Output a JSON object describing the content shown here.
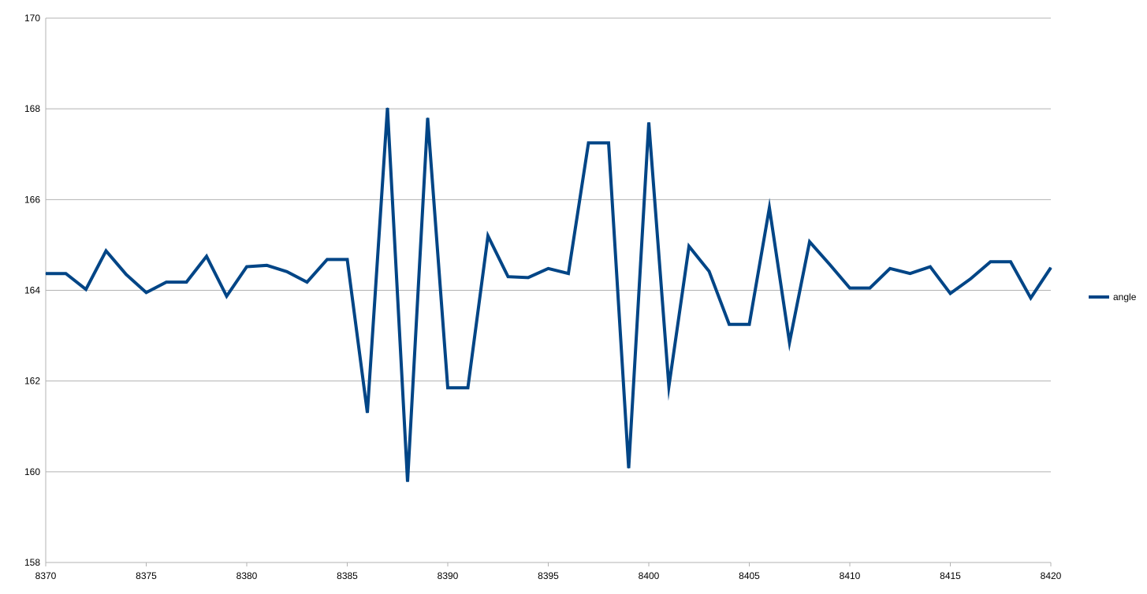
{
  "chart_data": {
    "type": "line",
    "title": "",
    "xlabel": "",
    "ylabel": "",
    "xlim": [
      8370,
      8420
    ],
    "ylim": [
      158,
      170
    ],
    "x_ticks": [
      8370,
      8375,
      8380,
      8385,
      8390,
      8395,
      8400,
      8405,
      8410,
      8415,
      8420
    ],
    "y_ticks": [
      158,
      160,
      162,
      164,
      166,
      168,
      170
    ],
    "grid": "horizontal",
    "legend_position": "right",
    "series": [
      {
        "name": "angle",
        "color": "#004586",
        "x": [
          8370,
          8371,
          8372,
          8373,
          8374,
          8375,
          8376,
          8377,
          8378,
          8379,
          8380,
          8381,
          8382,
          8383,
          8384,
          8385,
          8386,
          8387,
          8388,
          8389,
          8390,
          8391,
          8392,
          8393,
          8394,
          8395,
          8396,
          8397,
          8398,
          8399,
          8400,
          8401,
          8402,
          8403,
          8404,
          8405,
          8406,
          8407,
          8408,
          8409,
          8410,
          8411,
          8412,
          8413,
          8414,
          8415,
          8416,
          8417,
          8418,
          8419,
          8420
        ],
        "values": [
          164.37,
          164.37,
          164.02,
          164.87,
          164.35,
          163.95,
          164.18,
          164.18,
          164.75,
          163.87,
          164.52,
          164.55,
          164.41,
          164.18,
          164.68,
          164.68,
          161.3,
          168.02,
          159.78,
          167.8,
          161.85,
          161.85,
          165.2,
          164.3,
          164.28,
          164.48,
          164.37,
          167.25,
          167.25,
          160.08,
          167.7,
          161.88,
          164.97,
          164.42,
          163.25,
          163.25,
          165.82,
          162.85,
          165.07,
          164.57,
          164.05,
          164.05,
          164.48,
          164.37,
          164.52,
          163.93,
          164.25,
          164.63,
          164.63,
          163.83,
          164.5
        ]
      }
    ]
  }
}
